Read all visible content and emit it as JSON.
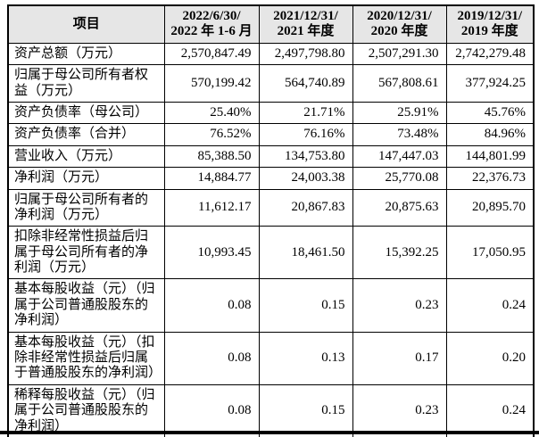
{
  "table": {
    "header": {
      "item_label": "项目",
      "periods": [
        {
          "line1": "2022/6/30/",
          "line2": "2022 年 1-6 月"
        },
        {
          "line1": "2021/12/31/",
          "line2": "2021 年度"
        },
        {
          "line1": "2020/12/31/",
          "line2": "2020 年度"
        },
        {
          "line1": "2019/12/31/",
          "line2": "2019 年度"
        }
      ]
    },
    "rows": [
      {
        "label": "资产总额（万元）",
        "values": [
          "2,570,847.49",
          "2,497,798.80",
          "2,507,291.30",
          "2,742,279.48"
        ]
      },
      {
        "label": "归属于母公司所有者权益（万元）",
        "values": [
          "570,199.42",
          "564,740.89",
          "567,808.61",
          "377,924.25"
        ]
      },
      {
        "label": "资产负债率（母公司）",
        "values": [
          "25.40%",
          "21.71%",
          "25.91%",
          "45.76%"
        ]
      },
      {
        "label": "资产负债率（合并）",
        "values": [
          "76.52%",
          "76.16%",
          "73.48%",
          "84.96%"
        ]
      },
      {
        "label": "营业收入（万元）",
        "values": [
          "85,388.50",
          "134,753.80",
          "147,447.03",
          "144,801.99"
        ]
      },
      {
        "label": "净利润（万元）",
        "values": [
          "14,884.77",
          "24,003.38",
          "25,770.08",
          "22,376.73"
        ]
      },
      {
        "label": "归属于母公司所有者的净利润（万元）",
        "values": [
          "11,612.17",
          "20,867.83",
          "20,875.63",
          "20,895.70"
        ]
      },
      {
        "label": "扣除非经常性损益后归属于母公司所有者的净利润（万元）",
        "values": [
          "10,993.45",
          "18,461.50",
          "15,392.25",
          "17,050.95"
        ]
      },
      {
        "label": "基本每股收益（元）（归属于公司普通股股东的净利润）",
        "values": [
          "0.08",
          "0.15",
          "0.23",
          "0.24"
        ]
      },
      {
        "label": "基本每股收益（元）（扣除非经常性损益后归属于普通股股东的净利润）",
        "values": [
          "0.08",
          "0.13",
          "0.17",
          "0.20"
        ]
      },
      {
        "label": "稀释每股收益（元）（归属于公司普通股股东的净利润）",
        "values": [
          "0.08",
          "0.15",
          "0.23",
          "0.24"
        ]
      }
    ],
    "colors": {
      "header_bg": "#e6e6e6",
      "border": "#000000",
      "text": "#000000"
    }
  }
}
